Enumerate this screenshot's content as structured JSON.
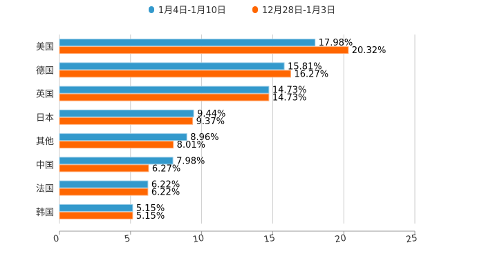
{
  "chart_data": {
    "type": "bar",
    "orientation": "horizontal",
    "categories": [
      "美国",
      "德国",
      "英国",
      "日本",
      "其他",
      "中国",
      "法国",
      "韩国"
    ],
    "series": [
      {
        "name": "1月4日-1月10日",
        "color": "#3399cc",
        "values": [
          17.98,
          15.81,
          14.73,
          9.44,
          8.96,
          7.98,
          6.22,
          5.15
        ],
        "labels": [
          "17.98%",
          "15.81%",
          "14.73%",
          "9.44%",
          "8.96%",
          "7.98%",
          "6.22%",
          "5.15%"
        ]
      },
      {
        "name": "12月28日-1月3日",
        "color": "#ff6600",
        "values": [
          20.32,
          16.27,
          14.73,
          9.37,
          8.01,
          6.27,
          6.22,
          5.15
        ],
        "labels": [
          "20.32%",
          "16.27%",
          "14.73%",
          "9.37%",
          "8.01%",
          "6.27%",
          "6.22%",
          "5.15%"
        ]
      }
    ],
    "xlim": [
      0,
      25
    ],
    "xticks": [
      "0",
      "5",
      "10",
      "15",
      "20",
      "25"
    ],
    "legend_position": "top-center",
    "grid": true
  }
}
